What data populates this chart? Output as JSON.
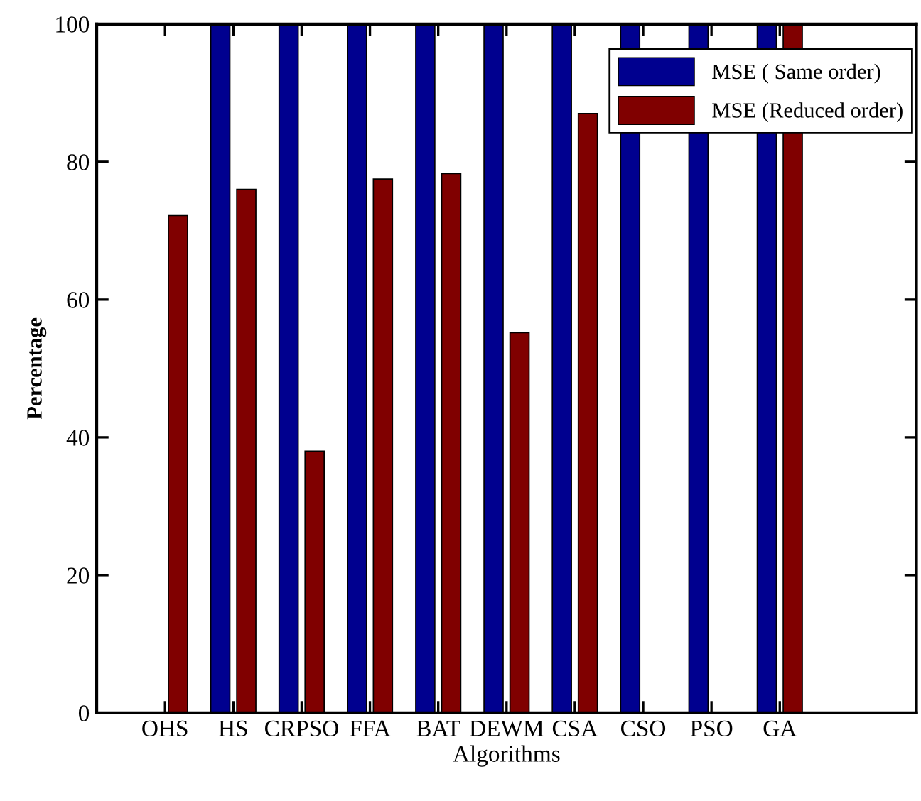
{
  "chart_data": {
    "type": "bar",
    "categories": [
      "OHS",
      "HS",
      "CRPSO",
      "FFA",
      "BAT",
      "DEWM",
      "CSA",
      "CSO",
      "PSO",
      "GA"
    ],
    "series": [
      {
        "name": "MSE ( Same order)",
        "color": "#00008f",
        "values": [
          0,
          100,
          100,
          100,
          100,
          100,
          100,
          100,
          100,
          100
        ]
      },
      {
        "name": "MSE (Reduced order)",
        "color": "#800000",
        "values": [
          72.2,
          76,
          38,
          77.5,
          78.3,
          55.2,
          87,
          null,
          null,
          100
        ]
      }
    ],
    "xlabel": "Algorithms",
    "ylabel": "Percentage",
    "ylim": [
      0,
      100
    ],
    "yticks": [
      0,
      20,
      40,
      60,
      80,
      100
    ],
    "legend": "top right",
    "grid": false
  }
}
